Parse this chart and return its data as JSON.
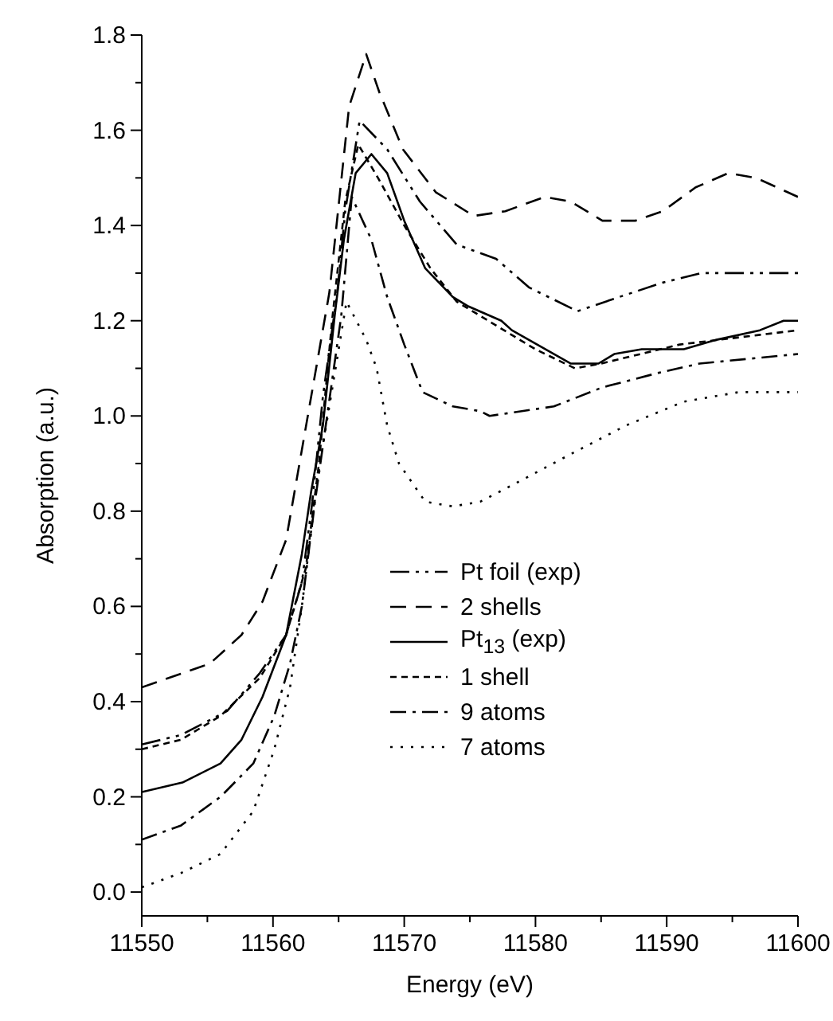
{
  "chart_data": {
    "type": "line",
    "xlabel": "Energy (eV)",
    "ylabel": "Absorption (a.u.)",
    "xlim": [
      11550,
      11600
    ],
    "ylim": [
      -0.05,
      1.8
    ],
    "xticks": [
      11550,
      {
        "value": 11555,
        "label": null
      },
      11560,
      {
        "value": 11565,
        "label": null
      },
      11570,
      {
        "value": 11575,
        "label": null
      },
      11580,
      {
        "value": 11585,
        "label": null
      },
      11590,
      {
        "value": 11595,
        "label": null
      },
      11600
    ],
    "yticks": [
      {
        "value": 0,
        "label": "0.0"
      },
      {
        "value": 0.1,
        "label": null
      },
      0.2,
      {
        "value": 0.3,
        "label": null
      },
      0.4,
      {
        "value": 0.5,
        "label": null
      },
      0.6,
      {
        "value": 0.7,
        "label": null
      },
      0.8,
      {
        "value": 0.9,
        "label": null
      },
      {
        "value": 1,
        "label": "1.0"
      },
      {
        "value": 1.1,
        "label": null
      },
      1.2,
      {
        "value": 1.3,
        "label": null
      },
      1.4,
      {
        "value": 1.5,
        "label": null
      },
      1.6,
      {
        "value": 1.7,
        "label": null
      },
      1.8
    ],
    "grid": false,
    "legend": "right",
    "marker": "none",
    "series": [
      {
        "name": "Pt foil (exp)",
        "color": "#000000",
        "line_style": "dashdotdot",
        "x": [
          11550,
          11553,
          11556.5,
          11559,
          11561,
          11562.2,
          11563,
          11563.8,
          11564.9,
          11565.5,
          11566.6,
          11568.7,
          11571.2,
          11574,
          11577,
          11579.5,
          11583.2,
          11586.4,
          11589.7,
          11592.6,
          11600
        ],
        "values": [
          0.31,
          0.33,
          0.38,
          0.46,
          0.54,
          0.65,
          0.82,
          1.04,
          1.26,
          1.43,
          1.62,
          1.56,
          1.45,
          1.36,
          1.33,
          1.27,
          1.22,
          1.25,
          1.28,
          1.3,
          1.3
        ]
      },
      {
        "name": "2 shells",
        "color": "#000000",
        "line_style": "dashed",
        "x": [
          11550,
          11555.2,
          11557.6,
          11559.2,
          11561,
          11561.7,
          11564.3,
          11565.8,
          11567.1,
          11568.1,
          11569.9,
          11572.4,
          11575.3,
          11577.7,
          11580.7,
          11582.7,
          11585.1,
          11587.6,
          11589.7,
          11592.2,
          11594.7,
          11596.8,
          11600
        ],
        "values": [
          0.43,
          0.48,
          0.54,
          0.61,
          0.74,
          0.85,
          1.26,
          1.65,
          1.76,
          1.68,
          1.56,
          1.47,
          1.42,
          1.43,
          1.46,
          1.45,
          1.41,
          1.41,
          1.43,
          1.48,
          1.51,
          1.5,
          1.46
        ]
      },
      {
        "name": "Pt$_{13}$ (exp)",
        "color": "#000000",
        "line_style": "solid",
        "x": [
          11550,
          11553.1,
          11556,
          11557.6,
          11559.2,
          11561,
          11562.2,
          11562.9,
          11563.8,
          11564.7,
          11565.4,
          11566.3,
          11567.5,
          11568.7,
          11570,
          11571.6,
          11573.7,
          11574.9,
          11577.4,
          11578.2,
          11582.7,
          11584.8,
          11586,
          11588.1,
          11591.3,
          11593.8,
          11597.1,
          11598.9,
          11600
        ],
        "values": [
          0.21,
          0.23,
          0.27,
          0.32,
          0.41,
          0.54,
          0.71,
          0.84,
          0.98,
          1.21,
          1.37,
          1.51,
          1.55,
          1.51,
          1.41,
          1.31,
          1.25,
          1.23,
          1.2,
          1.18,
          1.11,
          1.11,
          1.13,
          1.14,
          1.14,
          1.16,
          1.18,
          1.2,
          1.2
        ]
      },
      {
        "name": "1 shell",
        "color": "#000000",
        "line_style": "shortdash",
        "x": [
          11550,
          11553,
          11556,
          11559,
          11561,
          11562.5,
          11563.5,
          11564.5,
          11565.5,
          11566.5,
          11568,
          11570,
          11572,
          11574,
          11577,
          11580,
          11583,
          11585,
          11588,
          11591,
          11594,
          11597,
          11600
        ],
        "values": [
          0.3,
          0.32,
          0.37,
          0.45,
          0.54,
          0.68,
          0.9,
          1.2,
          1.45,
          1.57,
          1.5,
          1.4,
          1.31,
          1.24,
          1.19,
          1.14,
          1.1,
          1.11,
          1.13,
          1.15,
          1.16,
          1.17,
          1.18
        ]
      },
      {
        "name": "9 atoms",
        "color": "#000000",
        "line_style": "dashdot",
        "x": [
          11550,
          11553,
          11556,
          11558.5,
          11560.1,
          11561.3,
          11562.2,
          11563.2,
          11565.2,
          11566,
          11567.5,
          11568.7,
          11570,
          11571.4,
          11573.7,
          11575.8,
          11576.5,
          11581.4,
          11585.1,
          11589.3,
          11592.5,
          11600
        ],
        "values": [
          0.11,
          0.14,
          0.2,
          0.27,
          0.37,
          0.48,
          0.6,
          0.82,
          1.21,
          1.46,
          1.37,
          1.25,
          1.15,
          1.05,
          1.02,
          1.01,
          1,
          1.02,
          1.06,
          1.09,
          1.11,
          1.13
        ]
      },
      {
        "name": "7 atoms",
        "color": "#000000",
        "line_style": "dotted",
        "x": [
          11550,
          11553,
          11556,
          11558.5,
          11560.1,
          11561.3,
          11562.2,
          11563.4,
          11565.6,
          11567.1,
          11567.9,
          11568.7,
          11569.6,
          11571.6,
          11573.7,
          11575.8,
          11578.6,
          11582.7,
          11586.9,
          11591.3,
          11595.5,
          11600
        ],
        "values": [
          0.01,
          0.04,
          0.08,
          0.17,
          0.3,
          0.43,
          0.6,
          0.87,
          1.24,
          1.16,
          1.1,
          0.98,
          0.9,
          0.82,
          0.81,
          0.82,
          0.86,
          0.92,
          0.98,
          1.03,
          1.05,
          1.05
        ]
      }
    ]
  }
}
